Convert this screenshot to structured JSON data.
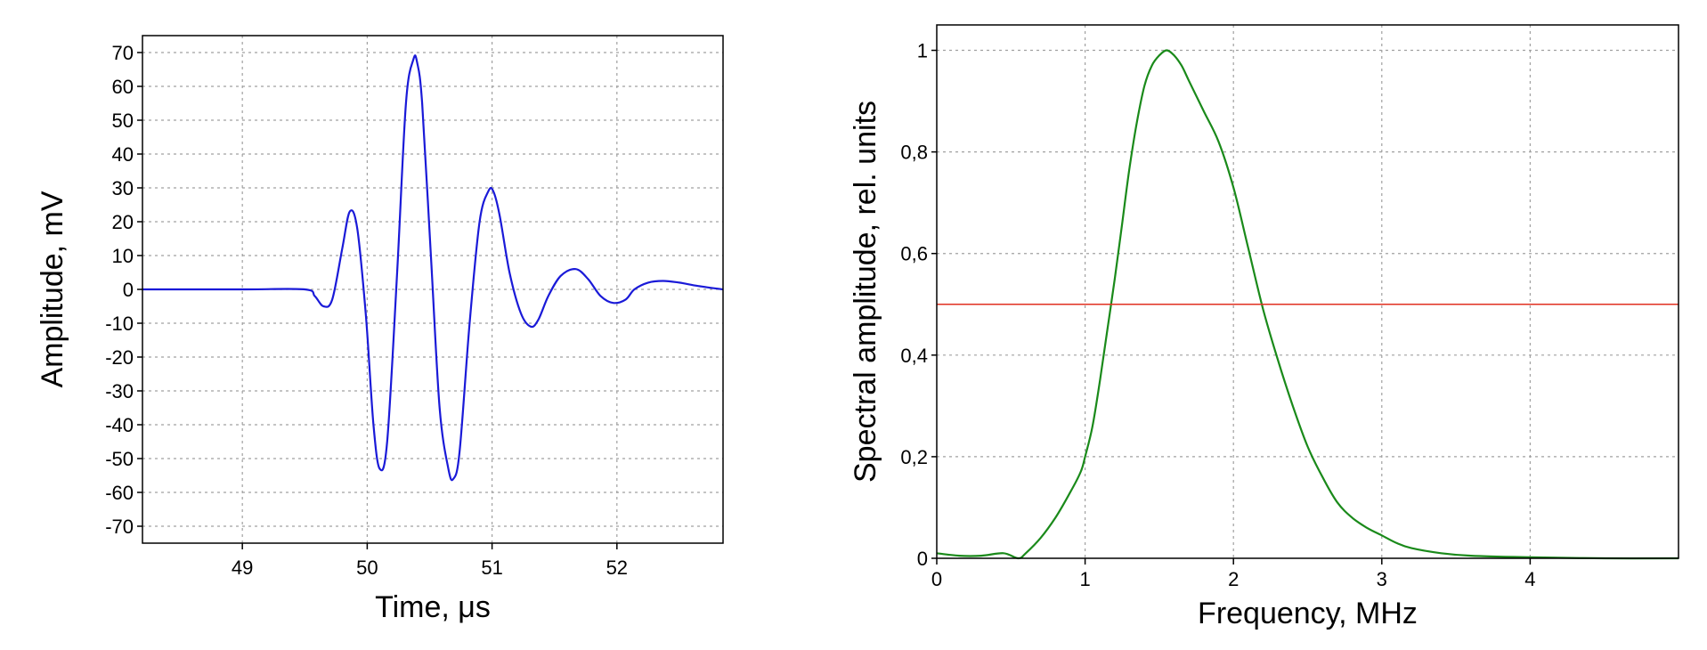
{
  "chart_data": [
    {
      "type": "line",
      "xlabel": "Time, μs",
      "ylabel": "Amplitude, mV",
      "xlim": [
        48.2,
        52.85
      ],
      "ylim": [
        -75,
        75
      ],
      "xticks": [
        49,
        50,
        51,
        52
      ],
      "yticks": [
        70,
        60,
        50,
        40,
        30,
        20,
        10,
        0,
        -10,
        -20,
        -30,
        -40,
        -50,
        -60,
        -70
      ],
      "grid": true,
      "series": [
        {
          "color": "#1a1ad8",
          "x": [
            48.2,
            49.0,
            49.5,
            49.58,
            49.65,
            49.72,
            49.8,
            49.86,
            49.92,
            49.99,
            50.05,
            50.1,
            50.16,
            50.24,
            50.31,
            50.37,
            50.4,
            50.44,
            50.51,
            50.58,
            50.65,
            50.69,
            50.74,
            50.82,
            50.9,
            50.97,
            51.01,
            51.06,
            51.14,
            51.23,
            51.31,
            51.37,
            51.45,
            51.55,
            51.67,
            51.77,
            51.87,
            51.97,
            52.07,
            52.14,
            52.25,
            52.37,
            52.5,
            52.65,
            52.85
          ],
          "y": [
            0,
            0,
            0,
            -2,
            -5,
            -3,
            12,
            23,
            18,
            -8,
            -40,
            -53,
            -45,
            5,
            55,
            68,
            67,
            55,
            10,
            -35,
            -53,
            -56,
            -48,
            -10,
            20,
            29,
            29,
            22,
            5,
            -7,
            -11,
            -9,
            -2,
            4,
            6,
            3,
            -2,
            -4,
            -3,
            0,
            2,
            2.5,
            2,
            1,
            0
          ]
        }
      ]
    },
    {
      "type": "line",
      "xlabel": "Frequency, MHz",
      "ylabel": "Spectral amplitude, rel. units",
      "xlim": [
        0,
        5
      ],
      "ylim": [
        0,
        1.05
      ],
      "xticks": [
        "0",
        "1",
        "2",
        "3",
        "4"
      ],
      "yticks": [
        "0",
        "0,2",
        "0,4",
        "0,6",
        "0,8",
        "1"
      ],
      "grid": true,
      "series": [
        {
          "color": "#1a8a1a",
          "x": [
            0,
            0.15,
            0.3,
            0.45,
            0.55,
            0.6,
            0.7,
            0.8,
            0.9,
            0.97,
            1.0,
            1.05,
            1.1,
            1.15,
            1.2,
            1.25,
            1.3,
            1.35,
            1.4,
            1.45,
            1.5,
            1.55,
            1.6,
            1.65,
            1.7,
            1.8,
            1.9,
            2.0,
            2.1,
            2.2,
            2.3,
            2.4,
            2.5,
            2.6,
            2.7,
            2.8,
            2.9,
            3.0,
            3.1,
            3.2,
            3.4,
            3.6,
            4.0,
            4.5,
            5.0
          ],
          "y": [
            0.01,
            0.005,
            0.005,
            0.01,
            0.0,
            0.01,
            0.04,
            0.08,
            0.13,
            0.17,
            0.2,
            0.26,
            0.35,
            0.45,
            0.55,
            0.66,
            0.77,
            0.86,
            0.93,
            0.97,
            0.99,
            1.0,
            0.99,
            0.97,
            0.94,
            0.88,
            0.82,
            0.73,
            0.61,
            0.49,
            0.39,
            0.3,
            0.22,
            0.16,
            0.11,
            0.08,
            0.06,
            0.045,
            0.03,
            0.02,
            0.01,
            0.005,
            0.002,
            0.0,
            0.0
          ]
        },
        {
          "color": "#e03020",
          "x": [
            0,
            5
          ],
          "y": [
            0.5,
            0.5
          ]
        }
      ]
    }
  ]
}
